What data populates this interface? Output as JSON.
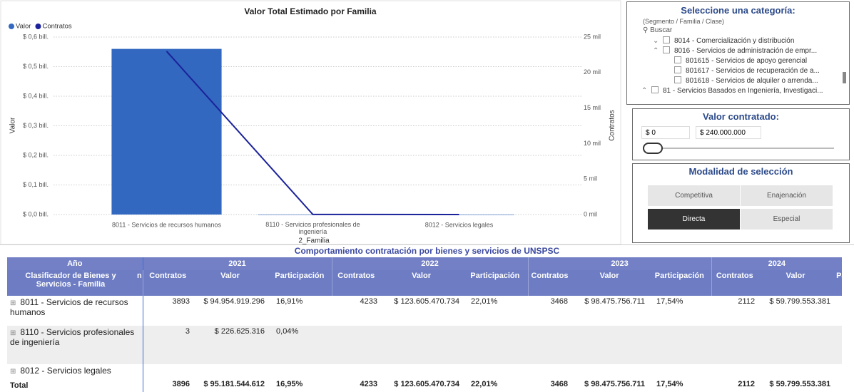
{
  "chart_data": {
    "type": "combo",
    "title": "Valor Total Estimado por Familia",
    "categories": [
      "8011 - Servicios de recursos humanos",
      "8110 - Servicios profesionales de ingeniería",
      "8012 - Servicios legales"
    ],
    "x_label": "2_Familia",
    "y_label": "Valor",
    "y2_label": "Contratos",
    "series": [
      {
        "name": "Valor",
        "type": "bar",
        "color": "#3268c0",
        "values": [
          0.56,
          0.0002,
          0.0001
        ]
      },
      {
        "name": "Contratos",
        "type": "line",
        "axis": "y2",
        "color": "#1b229a",
        "values": [
          23000,
          10,
          0
        ]
      }
    ],
    "ylim": [
      0,
      0.6
    ],
    "yticks": [
      {
        "value": 0,
        "label": "$ 0,0 bill."
      },
      {
        "value": 0.1,
        "label": "$ 0,1 bill."
      },
      {
        "value": 0.2,
        "label": "$ 0,2 bill."
      },
      {
        "value": 0.3,
        "label": "$ 0,3 bill."
      },
      {
        "value": 0.4,
        "label": "$ 0,4 bill."
      },
      {
        "value": 0.5,
        "label": "$ 0,5 bill."
      },
      {
        "value": 0.6,
        "label": "$ 0,6 bill."
      }
    ],
    "y2lim": [
      0,
      25000
    ],
    "y2ticks": [
      {
        "value": 0,
        "label": "0 mil"
      },
      {
        "value": 5000,
        "label": "5 mil"
      },
      {
        "value": 10000,
        "label": "10 mil"
      },
      {
        "value": 15000,
        "label": "15 mil"
      },
      {
        "value": 20000,
        "label": "20 mil"
      },
      {
        "value": 25000,
        "label": "25 mil"
      }
    ],
    "grid": true,
    "legend": "top-left"
  },
  "category_slicer": {
    "title": "Seleccione una categoría:",
    "subtitle": "(Segmento / Familia / Clase)",
    "search": "Buscar",
    "items": [
      "8014 - Comercialización y distribución",
      "8016 - Servicios de administración de empr...",
      "801615 - Servicios de apoyo gerencial",
      "801617 - Servicios de recuperación de a...",
      "801618 - Servicios de alquiler o arrenda...",
      "81 - Servicios Basados en Ingeniería, Investigaci..."
    ]
  },
  "value_slicer": {
    "title": "Valor contratado:",
    "min": "$ 0",
    "max": "$ 240.000.000"
  },
  "mode_slicer": {
    "title": "Modalidad de selección",
    "options": [
      "Competitiva",
      "Enajenación",
      "Directa",
      "Especial"
    ],
    "selected": 2
  },
  "table": {
    "title": "Comportamiento contratación por bienes y servicios de UNSPSC",
    "year_header": "Año",
    "years": [
      "2021",
      "2022",
      "2023",
      "2024"
    ],
    "headers": [
      "Clasificador de Bienes y Servicios - Familia",
      "n",
      "Contratos",
      "Valor",
      "Participación",
      "Contratos",
      "Valor",
      "Participación",
      "Contratos",
      "Valor",
      "Participación",
      "Contratos",
      "Valor",
      "Pa"
    ],
    "rows": [
      {
        "label": "8011 - Servicios de recursos humanos",
        "cells": [
          3893,
          "$ 94.954.919.296",
          "16,91%",
          4233,
          "$ 123.605.470.734",
          "22,01%",
          3468,
          "$ 98.475.756.711",
          "17,54%",
          2112,
          "$ 59.799.553.381",
          null
        ]
      },
      {
        "label": "8110 - Servicios profesionales de ingeniería",
        "cells": [
          3,
          "$ 226.625.316",
          "0,04%",
          null,
          null,
          null,
          null,
          null,
          null,
          null,
          null,
          null
        ]
      },
      {
        "label": "8012 - Servicios legales",
        "cells": [
          null,
          null,
          null,
          null,
          null,
          null,
          null,
          null,
          null,
          null,
          null,
          null
        ]
      }
    ],
    "total": {
      "label": "Total",
      "cells": [
        3896,
        "$ 95.181.544.612",
        "16,95%",
        4233,
        "$ 123.605.470.734",
        "22,01%",
        3468,
        "$ 98.475.756.711",
        "17,54%",
        2112,
        "$ 59.799.553.381",
        null
      ]
    }
  }
}
